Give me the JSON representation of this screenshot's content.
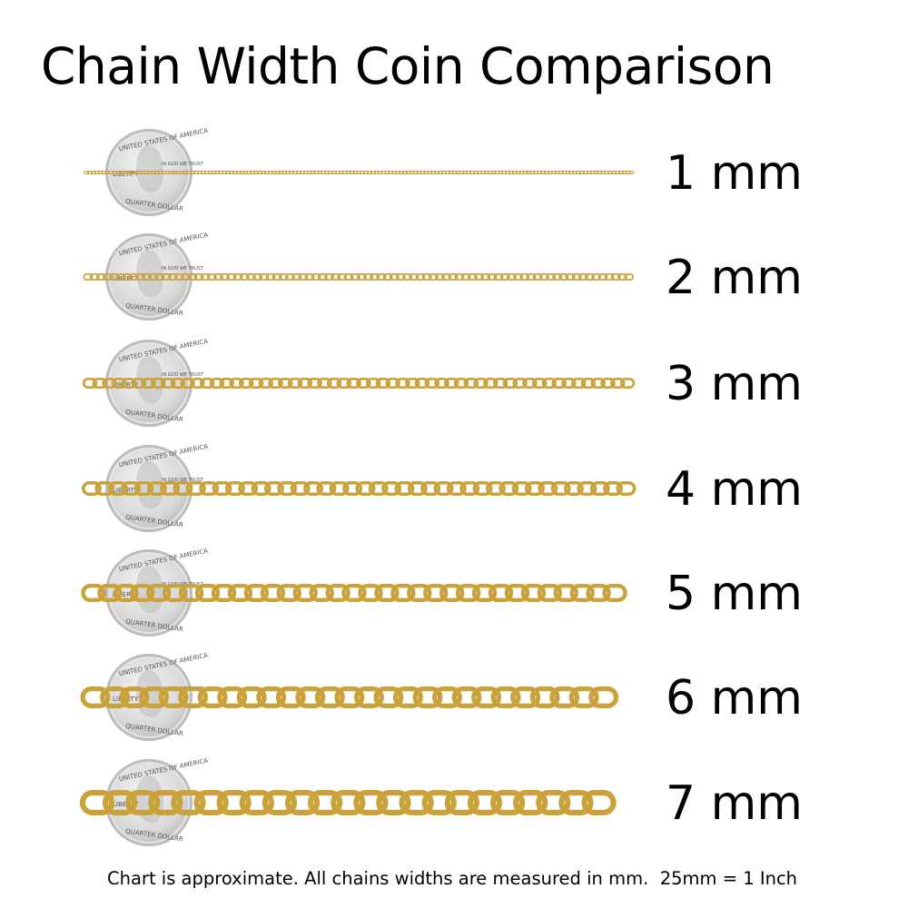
{
  "title": "Chain Width Coin Comparison",
  "coin": {
    "top_text": "UNITED STATES OF AMERICA",
    "left_text": "LIBERTY",
    "motto": "IN GOD WE TRUST",
    "bottom_text": "QUARTER DOLLAR"
  },
  "chain_color": "#c9a23c",
  "chain_dark": "#8a6a1c",
  "rows": [
    {
      "width_mm": 1,
      "label": "1 mm"
    },
    {
      "width_mm": 2,
      "label": "2 mm"
    },
    {
      "width_mm": 3,
      "label": "3 mm"
    },
    {
      "width_mm": 4,
      "label": "4 mm"
    },
    {
      "width_mm": 5,
      "label": "5 mm"
    },
    {
      "width_mm": 6,
      "label": "6 mm"
    },
    {
      "width_mm": 7,
      "label": "7 mm"
    }
  ],
  "footnote": "Chart is approximate. All chains widths are measured in mm.  25mm = 1 Inch"
}
